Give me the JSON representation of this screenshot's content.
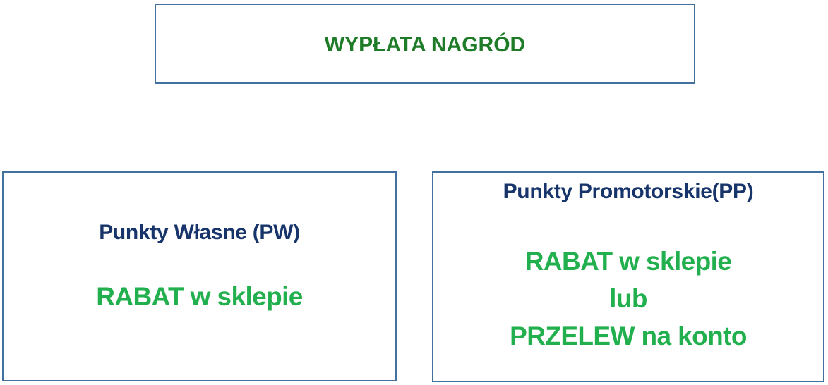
{
  "diagram_title": "WYPŁATA NAGRÓD",
  "colors": {
    "box_border": "#41719c",
    "title_green": "#1e7b28",
    "heading_navy": "#17346b",
    "reward_green": "#22b04f",
    "background": "#ffffff"
  },
  "top_box": {
    "title": "WYPŁATA NAGRÓD"
  },
  "left_box": {
    "heading": "Punkty Własne (PW)",
    "lines": [
      "RABAT w sklepie"
    ]
  },
  "right_box": {
    "heading": "Punkty Promotorskie(PP)",
    "lines": [
      "RABAT w sklepie",
      "lub",
      "PRZELEW na konto"
    ]
  }
}
